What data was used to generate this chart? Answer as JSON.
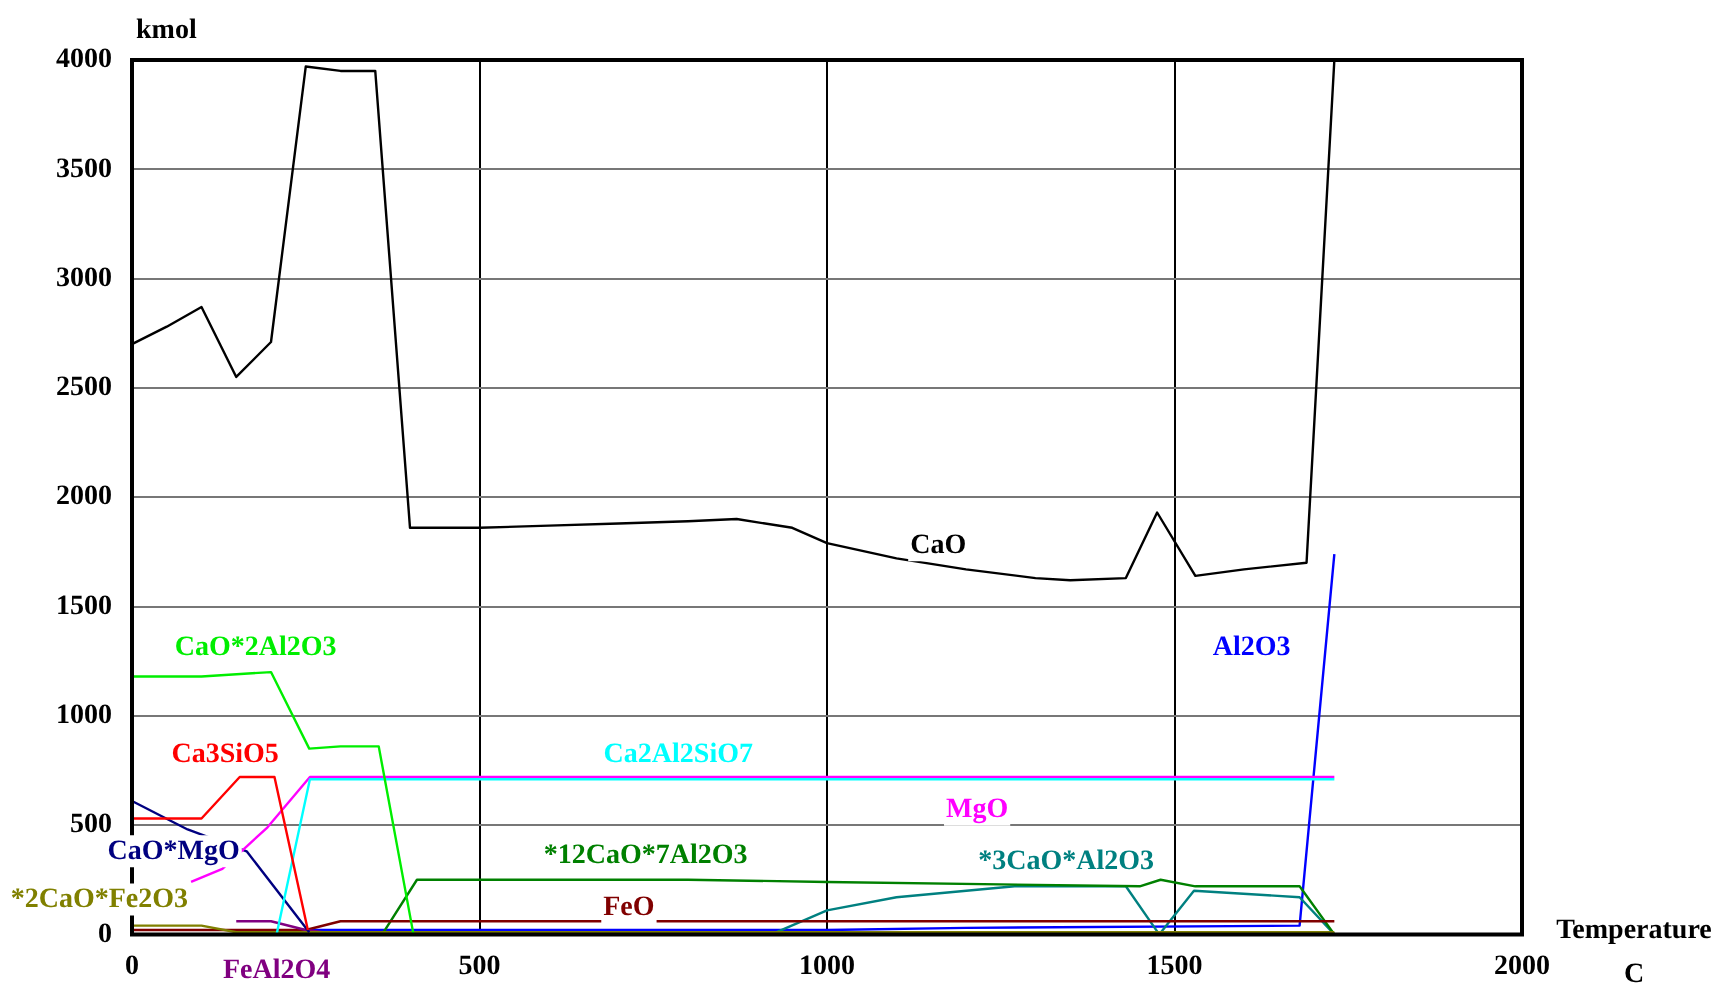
{
  "chart_data": {
    "type": "line",
    "xlabel": "Temperature C",
    "ylabel": "kmol",
    "xlim": [
      0,
      2000
    ],
    "xticks": [
      0,
      500,
      1000,
      1500,
      2000
    ],
    "ylim": [
      0,
      4000
    ],
    "yticks": [
      0,
      500,
      1000,
      1500,
      2000,
      2500,
      3000,
      3500,
      4000
    ],
    "grid": true,
    "legend": false,
    "marker": "none",
    "line_style": "solid",
    "series": [
      {
        "name": "CaO",
        "color": "#000000",
        "x": [
          0,
          50,
          100,
          150,
          200,
          250,
          300,
          350,
          400,
          500,
          600,
          700,
          800,
          870,
          950,
          1000,
          1100,
          1200,
          1300,
          1350,
          1430,
          1475,
          1530,
          1600,
          1690,
          1730
        ],
        "values": [
          2700,
          2780,
          2870,
          2550,
          2710,
          3970,
          3950,
          3950,
          1860,
          1860,
          1870,
          1880,
          1890,
          1900,
          1860,
          1790,
          1720,
          1670,
          1630,
          1620,
          1630,
          1930,
          1640,
          1670,
          1700,
          4000
        ]
      },
      {
        "name": "CaO*2Al2O3",
        "color": "#00ee00",
        "x": [
          0,
          100,
          200,
          255,
          300,
          355,
          405
        ],
        "values": [
          1180,
          1180,
          1200,
          850,
          860,
          860,
          0
        ]
      },
      {
        "name": "Ca3SiO5",
        "color": "#ff0000",
        "x": [
          0,
          100,
          155,
          205,
          253
        ],
        "values": [
          530,
          530,
          720,
          720,
          20
        ]
      },
      {
        "name": "Ca2Al2SiO7",
        "color": "#00ffff",
        "x": [
          208,
          256,
          1730
        ],
        "values": [
          0,
          710,
          710
        ]
      },
      {
        "name": "MgO",
        "color": "#ff00ff",
        "x": [
          85,
          130,
          195,
          256,
          1730
        ],
        "values": [
          240,
          300,
          490,
          720,
          720
        ]
      },
      {
        "name": "CaO*MgO",
        "color": "#000080",
        "x": [
          0,
          80,
          165,
          255
        ],
        "values": [
          610,
          480,
          380,
          10
        ]
      },
      {
        "name": "*2CaO*Fe2O3",
        "color": "#808000",
        "x": [
          0,
          100,
          150,
          1730
        ],
        "values": [
          40,
          40,
          10,
          10
        ]
      },
      {
        "name": "FeAl2O4",
        "color": "#800080",
        "x": [
          150,
          200,
          250,
          300
        ],
        "values": [
          60,
          60,
          20,
          0
        ]
      },
      {
        "name": "FeO",
        "color": "#800000",
        "x": [
          0,
          250,
          300,
          1730
        ],
        "values": [
          20,
          20,
          60,
          60
        ]
      },
      {
        "name": "*12CaO*7Al2O3",
        "color": "#008000",
        "x": [
          360,
          410,
          500,
          800,
          1000,
          1450,
          1480,
          1530,
          1680,
          1730
        ],
        "values": [
          0,
          250,
          250,
          250,
          240,
          220,
          250,
          220,
          220,
          0
        ]
      },
      {
        "name": "*3CaO*Al2O3",
        "color": "#008080",
        "x": [
          920,
          1000,
          1100,
          1270,
          1430,
          1478,
          1528,
          1680,
          1730
        ],
        "values": [
          0,
          110,
          170,
          220,
          220,
          0,
          200,
          170,
          0
        ]
      },
      {
        "name": "Al2O3",
        "color": "#0000ff",
        "x": [
          255,
          1000,
          1200,
          1680,
          1730
        ],
        "values": [
          20,
          20,
          30,
          40,
          1740
        ]
      }
    ]
  }
}
